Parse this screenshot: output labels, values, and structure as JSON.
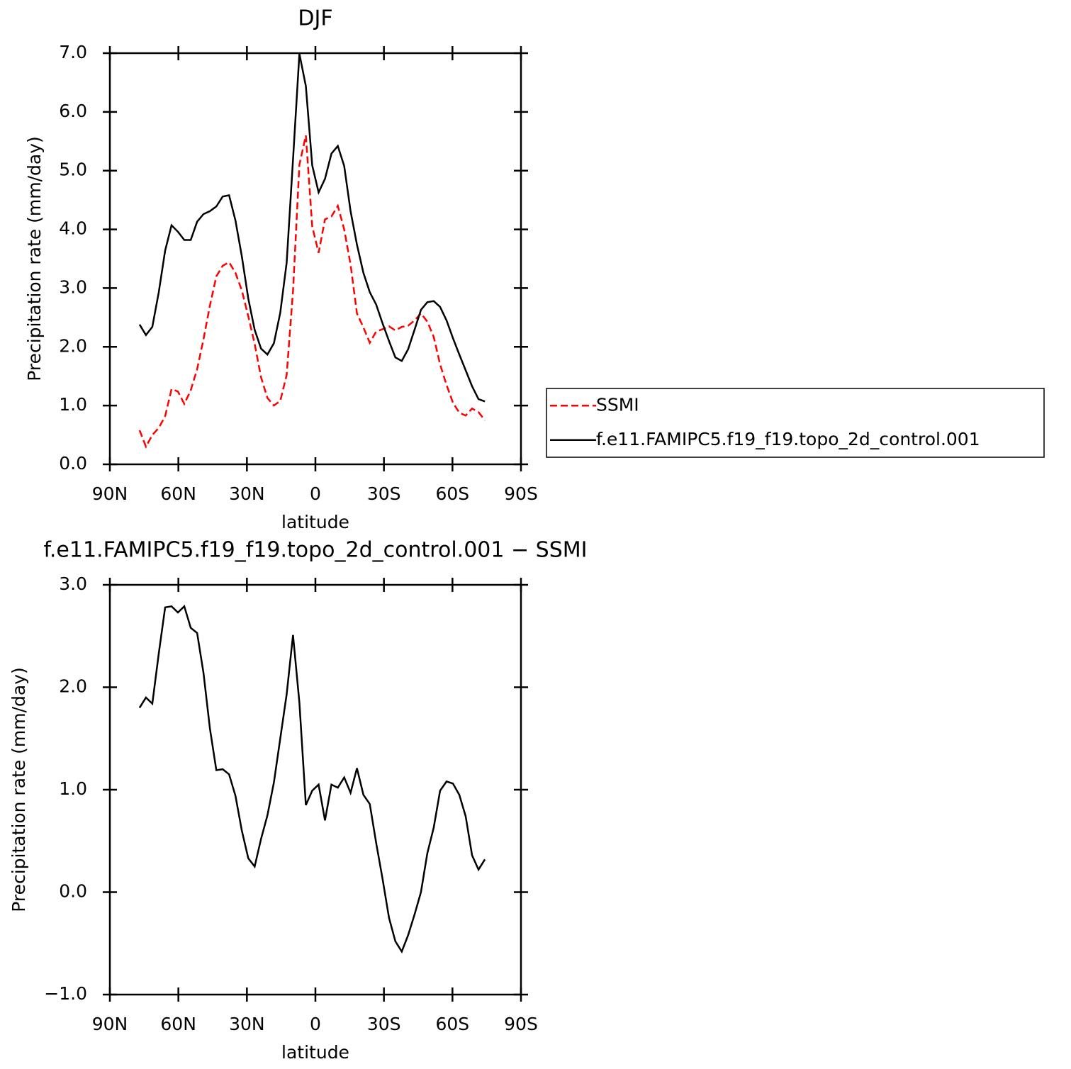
{
  "chart_data": [
    {
      "type": "line",
      "title": "DJF",
      "xlabel": "latitude",
      "ylabel": "Precipitation rate (mm/day)",
      "x": [
        77,
        74.2,
        71.4,
        68.6,
        65.8,
        63,
        60.2,
        57.4,
        54.6,
        51.8,
        49,
        46.2,
        43.4,
        40.6,
        37.8,
        35,
        32.2,
        29.4,
        26.6,
        23.8,
        21,
        18.2,
        15.4,
        12.6,
        9.8,
        7,
        4.2,
        1.4,
        -1.4,
        -4.2,
        -7,
        -9.8,
        -12.6,
        -15.4,
        -18.2,
        -21,
        -23.8,
        -26.6,
        -29.4,
        -32.2,
        -35,
        -37.8,
        -40.6,
        -43.4,
        -46.2,
        -49,
        -51.8,
        -54.6,
        -57.4,
        -60.2,
        -63,
        -65.8,
        -68.6,
        -71.4,
        -74.2
      ],
      "series": [
        {
          "name": "SSMI",
          "color": "#ff0000",
          "dashed": true,
          "values": [
            0.58,
            0.3,
            0.5,
            0.62,
            0.82,
            1.28,
            1.24,
            1.03,
            1.26,
            1.62,
            2.13,
            2.7,
            3.2,
            3.38,
            3.44,
            3.26,
            2.96,
            2.52,
            2.05,
            1.48,
            1.13,
            1.0,
            1.08,
            1.52,
            2.95,
            5.1,
            5.6,
            4.05,
            3.6,
            4.17,
            4.22,
            4.4,
            4.0,
            3.4,
            2.57,
            2.33,
            2.07,
            2.26,
            2.3,
            2.35,
            2.28,
            2.34,
            2.36,
            2.45,
            2.57,
            2.43,
            2.17,
            1.7,
            1.35,
            1.05,
            0.88,
            0.83,
            0.95,
            0.89,
            0.75
          ]
        },
        {
          "name": "f.e11.FAMIPC5.f19_f19.topo_2d_control.001",
          "color": "#000000",
          "dashed": false,
          "values": [
            2.38,
            2.2,
            2.34,
            2.93,
            3.64,
            4.07,
            3.96,
            3.82,
            3.82,
            4.13,
            4.26,
            4.31,
            4.39,
            4.56,
            4.58,
            4.15,
            3.54,
            2.82,
            2.29,
            1.97,
            1.87,
            2.06,
            2.58,
            3.43,
            5.19,
            6.99,
            6.44,
            5.09,
            4.63,
            4.86,
            5.29,
            5.42,
            5.08,
            4.31,
            3.74,
            3.26,
            2.93,
            2.72,
            2.4,
            2.1,
            1.82,
            1.76,
            1.96,
            2.29,
            2.63,
            2.76,
            2.78,
            2.68,
            2.45,
            2.15,
            1.87,
            1.6,
            1.33,
            1.11,
            1.07
          ]
        }
      ],
      "xlim": [
        90,
        -90
      ],
      "xticks": [
        {
          "value": 90,
          "label": "90N"
        },
        {
          "value": 60,
          "label": "60N"
        },
        {
          "value": 30,
          "label": "30N"
        },
        0,
        {
          "value": -30,
          "label": "30S"
        },
        {
          "value": -60,
          "label": "60S"
        },
        {
          "value": -90,
          "label": "90S"
        }
      ],
      "ylim": [
        0,
        7
      ],
      "yticks": [
        {
          "value": 0,
          "label": "0.0"
        },
        {
          "value": 1,
          "label": "1.0"
        },
        {
          "value": 2,
          "label": "2.0"
        },
        {
          "value": 3,
          "label": "3.0"
        },
        {
          "value": 4,
          "label": "4.0"
        },
        {
          "value": 5,
          "label": "5.0"
        },
        {
          "value": 6,
          "label": "6.0"
        },
        {
          "value": 7,
          "label": "7.0"
        }
      ],
      "legend": "right"
    },
    {
      "type": "line",
      "title": "f.e11.FAMIPC5.f19_f19.topo_2d_control.001 − SSMI",
      "xlabel": "latitude",
      "ylabel": "Precipitation rate (mm/day)",
      "x": [
        77,
        74.2,
        71.4,
        68.6,
        65.8,
        63,
        60.2,
        57.4,
        54.6,
        51.8,
        49,
        46.2,
        43.4,
        40.6,
        37.8,
        35,
        32.2,
        29.4,
        26.6,
        23.8,
        21,
        18.2,
        15.4,
        12.6,
        9.8,
        7,
        4.2,
        1.4,
        -1.4,
        -4.2,
        -7,
        -9.8,
        -12.6,
        -15.4,
        -18.2,
        -21,
        -23.8,
        -26.6,
        -29.4,
        -32.2,
        -35,
        -37.8,
        -40.6,
        -43.4,
        -46.2,
        -49,
        -51.8,
        -54.6,
        -57.4,
        -60.2,
        -63,
        -65.8,
        -68.6,
        -71.4,
        -74.2
      ],
      "series": [
        {
          "color": "#000000",
          "dashed": false,
          "values": [
            1.8,
            1.9,
            1.84,
            2.33,
            2.78,
            2.79,
            2.73,
            2.79,
            2.58,
            2.53,
            2.14,
            1.6,
            1.19,
            1.2,
            1.15,
            0.94,
            0.6,
            0.33,
            0.25,
            0.52,
            0.75,
            1.07,
            1.5,
            1.93,
            2.51,
            1.85,
            0.85,
            0.99,
            1.05,
            0.7,
            1.05,
            1.02,
            1.12,
            0.97,
            1.21,
            0.95,
            0.86,
            0.48,
            0.13,
            -0.25,
            -0.48,
            -0.58,
            -0.42,
            -0.22,
            0.0,
            0.38,
            0.63,
            0.99,
            1.08,
            1.06,
            0.95,
            0.74,
            0.36,
            0.22,
            0.32
          ]
        }
      ],
      "xlim": [
        90,
        -90
      ],
      "xticks": [
        {
          "value": 90,
          "label": "90N"
        },
        {
          "value": 60,
          "label": "60N"
        },
        {
          "value": 30,
          "label": "30N"
        },
        0,
        {
          "value": -30,
          "label": "30S"
        },
        {
          "value": -60,
          "label": "60S"
        },
        {
          "value": -90,
          "label": "90S"
        }
      ],
      "ylim": [
        -1,
        3
      ],
      "yticks": [
        {
          "value": -1,
          "label": "−1.0"
        },
        {
          "value": 0,
          "label": "0.0"
        },
        {
          "value": 1,
          "label": "1.0"
        },
        {
          "value": 2,
          "label": "2.0"
        },
        {
          "value": 3,
          "label": "3.0"
        }
      ]
    }
  ]
}
